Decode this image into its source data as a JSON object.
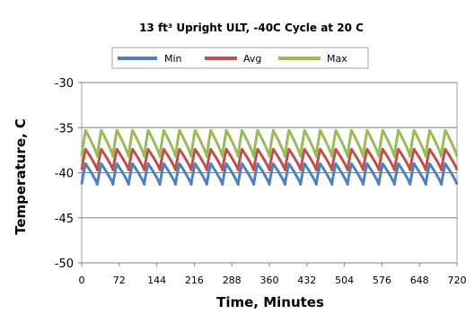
{
  "chart_data": {
    "type": "line",
    "title": "13 ft³ Upright ULT, -40C Cycle at 20 C",
    "xlabel": "Time, Minutes",
    "ylabel": "Temperature, C",
    "xlim": [
      0,
      720
    ],
    "ylim": [
      -50,
      -30
    ],
    "x_ticks": [
      0,
      72,
      144,
      216,
      288,
      360,
      432,
      504,
      576,
      648,
      720
    ],
    "y_ticks": [
      -30,
      -35,
      -40,
      -45,
      -50
    ],
    "y_tick_labels": [
      "-30",
      "-35",
      "-40",
      "-45",
      "-50"
    ],
    "grid": "horizontal",
    "legend_position": "top",
    "cycle_period_minutes": 30,
    "series": [
      {
        "name": "Min",
        "color": "#4f81bd",
        "low": -41.3,
        "high": -39.0
      },
      {
        "name": "Avg",
        "color": "#c0504d",
        "low": -39.7,
        "high": -37.4
      },
      {
        "name": "Max",
        "color": "#9bbb59",
        "low": -38.2,
        "high": -35.3
      }
    ]
  }
}
